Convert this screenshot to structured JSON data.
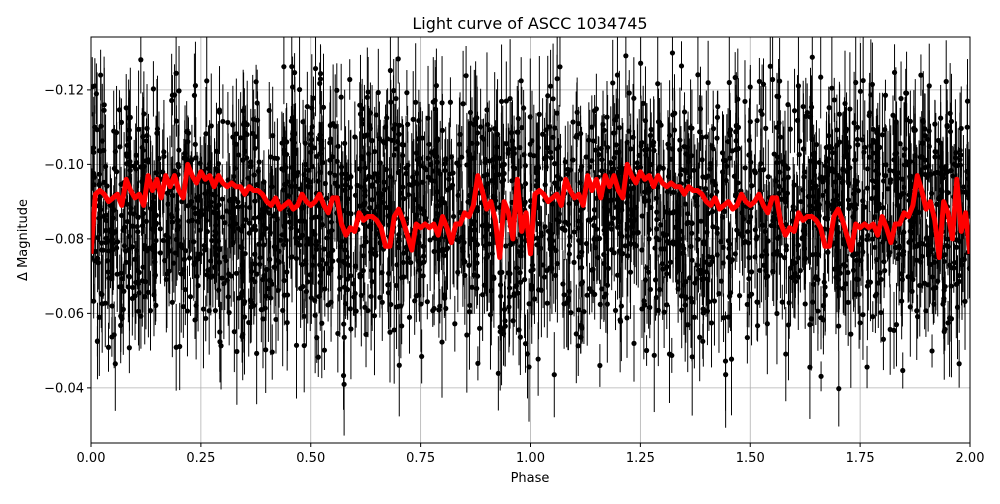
{
  "chart_data": {
    "type": "scatter",
    "title": "Light curve of ASCC 1034745",
    "xlabel": "Phase",
    "ylabel": "Δ Magnitude",
    "xlim": [
      0,
      2
    ],
    "ylim": [
      -0.0252,
      -0.1342
    ],
    "y_inverted": true,
    "grid": true,
    "xticks": [
      0,
      0.25,
      0.5,
      0.75,
      1.0,
      1.25,
      1.5,
      1.75,
      2.0
    ],
    "xtick_labels": [
      "0.00",
      "0.25",
      "0.50",
      "0.75",
      "1.00",
      "1.25",
      "1.50",
      "1.75",
      "2.00"
    ],
    "yticks": [
      -0.12,
      -0.1,
      -0.08,
      -0.06,
      -0.04
    ],
    "ytick_labels": [
      "−0.12",
      "−0.10",
      "−0.08",
      "−0.06",
      "−0.04"
    ],
    "series": [
      {
        "kind": "errorbar-points",
        "color": "#000000",
        "x_range": [
          0,
          2
        ],
        "y_center": -0.087,
        "y_spread": 0.05
      },
      {
        "kind": "line",
        "color": "#ff0000",
        "x_step": 0.01,
        "x_start": 0,
        "y": [
          -0.076,
          -0.092,
          -0.093,
          -0.092,
          -0.09,
          -0.091,
          -0.092,
          -0.089,
          -0.096,
          -0.093,
          -0.091,
          -0.092,
          -0.089,
          -0.097,
          -0.093,
          -0.096,
          -0.091,
          -0.097,
          -0.094,
          -0.097,
          -0.093,
          -0.091,
          -0.1,
          -0.097,
          -0.095,
          -0.098,
          -0.096,
          -0.097,
          -0.094,
          -0.097,
          -0.095,
          -0.094,
          -0.095,
          -0.094,
          -0.094,
          -0.092,
          -0.094,
          -0.093,
          -0.093,
          -0.092,
          -0.09,
          -0.089,
          -0.091,
          -0.088,
          -0.089,
          -0.09,
          -0.088,
          -0.089,
          -0.092,
          -0.09,
          -0.089,
          -0.09,
          -0.092,
          -0.089,
          -0.087,
          -0.091,
          -0.091,
          -0.084,
          -0.081,
          -0.083,
          -0.082,
          -0.087,
          -0.085,
          -0.086,
          -0.086,
          -0.085,
          -0.083,
          -0.078,
          -0.078,
          -0.086,
          -0.088,
          -0.085,
          -0.081,
          -0.077,
          -0.084,
          -0.083,
          -0.084,
          -0.083,
          -0.084,
          -0.081,
          -0.086,
          -0.083,
          -0.079,
          -0.084,
          -0.084,
          -0.087,
          -0.086,
          -0.089,
          -0.097,
          -0.093,
          -0.088,
          -0.09,
          -0.085,
          -0.075,
          -0.09,
          -0.087,
          -0.08,
          -0.096,
          -0.082,
          -0.087,
          -0.076,
          -0.092,
          -0.093,
          -0.092,
          -0.09,
          -0.091,
          -0.092,
          -0.089,
          -0.096,
          -0.093,
          -0.091,
          -0.092,
          -0.089,
          -0.097,
          -0.093,
          -0.096,
          -0.091,
          -0.097,
          -0.094,
          -0.097,
          -0.093,
          -0.091,
          -0.1,
          -0.097,
          -0.095,
          -0.098,
          -0.096,
          -0.097,
          -0.094,
          -0.097,
          -0.095,
          -0.094,
          -0.095,
          -0.094,
          -0.094,
          -0.092,
          -0.094,
          -0.093,
          -0.093,
          -0.092,
          -0.09,
          -0.089,
          -0.091,
          -0.088,
          -0.089,
          -0.09,
          -0.088,
          -0.089,
          -0.092,
          -0.09,
          -0.089,
          -0.09,
          -0.092,
          -0.089,
          -0.087,
          -0.091,
          -0.091,
          -0.084,
          -0.081,
          -0.083,
          -0.082,
          -0.087,
          -0.085,
          -0.086,
          -0.086,
          -0.085,
          -0.083,
          -0.078,
          -0.078,
          -0.086,
          -0.088,
          -0.085,
          -0.081,
          -0.077,
          -0.084,
          -0.083,
          -0.084,
          -0.083,
          -0.084,
          -0.081,
          -0.086,
          -0.083,
          -0.079,
          -0.084,
          -0.084,
          -0.087,
          -0.086,
          -0.089,
          -0.097,
          -0.093,
          -0.088,
          -0.09,
          -0.085,
          -0.075,
          -0.09,
          -0.087,
          -0.08,
          -0.096,
          -0.082,
          -0.087,
          -0.076
        ]
      }
    ]
  }
}
